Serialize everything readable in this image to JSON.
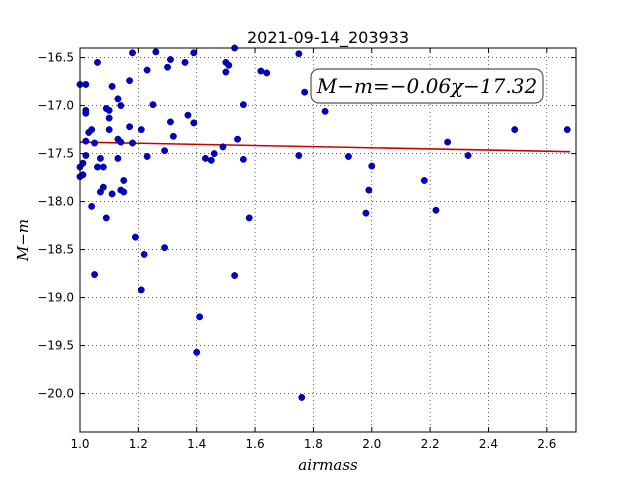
{
  "chart_data": {
    "type": "scatter",
    "title": "2021-09-14_203933",
    "xlabel": "airmass",
    "ylabel": "M−m",
    "xlim": [
      1.0,
      2.7
    ],
    "ylim": [
      -20.4,
      -16.4
    ],
    "y_inverted": true,
    "grid": true,
    "xticks": [
      1.0,
      1.2,
      1.4,
      1.6,
      1.8,
      2.0,
      2.2,
      2.4,
      2.6
    ],
    "xtick_labels": [
      "1.0",
      "1.2",
      "1.4",
      "1.6",
      "1.8",
      "2.0",
      "2.2",
      "2.4",
      "2.6"
    ],
    "yticks": [
      -16.5,
      -17.0,
      -17.5,
      -18.0,
      -18.5,
      -19.0,
      -19.5,
      -20.0
    ],
    "ytick_labels": [
      "−16.5",
      "−17.0",
      "−17.5",
      "−18.0",
      "−18.5",
      "−19.0",
      "−19.5",
      "−20.0"
    ],
    "annotation": "M−m=−0.06χ−17.32",
    "point_color": "#0000cc",
    "fit_color": "#cc0000",
    "fit_line": {
      "x": [
        1.0,
        2.68
      ],
      "y": [
        -17.38,
        -17.48
      ]
    },
    "points": [
      [
        1.0,
        -16.78
      ],
      [
        1.0,
        -17.64
      ],
      [
        1.0,
        -17.74
      ],
      [
        1.01,
        -17.6
      ],
      [
        1.01,
        -17.72
      ],
      [
        1.02,
        -16.78
      ],
      [
        1.02,
        -17.05
      ],
      [
        1.02,
        -17.08
      ],
      [
        1.02,
        -17.37
      ],
      [
        1.02,
        -17.52
      ],
      [
        1.03,
        -17.28
      ],
      [
        1.04,
        -17.25
      ],
      [
        1.04,
        -18.05
      ],
      [
        1.05,
        -18.76
      ],
      [
        1.05,
        -17.39
      ],
      [
        1.06,
        -17.64
      ],
      [
        1.06,
        -16.55
      ],
      [
        1.07,
        -17.9
      ],
      [
        1.07,
        -17.55
      ],
      [
        1.08,
        -17.64
      ],
      [
        1.08,
        -17.85
      ],
      [
        1.09,
        -18.17
      ],
      [
        1.09,
        -17.03
      ],
      [
        1.1,
        -17.05
      ],
      [
        1.1,
        -17.13
      ],
      [
        1.1,
        -17.25
      ],
      [
        1.11,
        -16.8
      ],
      [
        1.11,
        -17.92
      ],
      [
        1.13,
        -17.35
      ],
      [
        1.13,
        -17.55
      ],
      [
        1.13,
        -16.93
      ],
      [
        1.14,
        -17.0
      ],
      [
        1.14,
        -17.38
      ],
      [
        1.14,
        -17.88
      ],
      [
        1.15,
        -17.78
      ],
      [
        1.15,
        -17.9
      ],
      [
        1.17,
        -16.74
      ],
      [
        1.17,
        -17.22
      ],
      [
        1.18,
        -17.39
      ],
      [
        1.18,
        -16.45
      ],
      [
        1.19,
        -18.37
      ],
      [
        1.21,
        -17.25
      ],
      [
        1.21,
        -18.92
      ],
      [
        1.22,
        -18.55
      ],
      [
        1.23,
        -17.53
      ],
      [
        1.23,
        -16.63
      ],
      [
        1.25,
        -16.99
      ],
      [
        1.26,
        -16.44
      ],
      [
        1.29,
        -17.47
      ],
      [
        1.29,
        -18.48
      ],
      [
        1.3,
        -16.6
      ],
      [
        1.31,
        -16.52
      ],
      [
        1.31,
        -17.17
      ],
      [
        1.32,
        -17.32
      ],
      [
        1.36,
        -16.55
      ],
      [
        1.37,
        -17.1
      ],
      [
        1.39,
        -16.45
      ],
      [
        1.39,
        -17.18
      ],
      [
        1.4,
        -19.57
      ],
      [
        1.41,
        -19.2
      ],
      [
        1.43,
        -17.55
      ],
      [
        1.45,
        -17.57
      ],
      [
        1.46,
        -17.5
      ],
      [
        1.49,
        -17.43
      ],
      [
        1.5,
        -16.65
      ],
      [
        1.5,
        -16.55
      ],
      [
        1.51,
        -16.58
      ],
      [
        1.53,
        -16.4
      ],
      [
        1.53,
        -18.77
      ],
      [
        1.54,
        -17.35
      ],
      [
        1.56,
        -17.56
      ],
      [
        1.56,
        -16.99
      ],
      [
        1.58,
        -18.17
      ],
      [
        1.62,
        -16.64
      ],
      [
        1.64,
        -16.66
      ],
      [
        1.75,
        -16.46
      ],
      [
        1.75,
        -17.52
      ],
      [
        1.76,
        -20.04
      ],
      [
        1.77,
        -16.86
      ],
      [
        1.84,
        -17.06
      ],
      [
        1.92,
        -17.53
      ],
      [
        1.98,
        -18.12
      ],
      [
        1.99,
        -17.88
      ],
      [
        2.0,
        -17.63
      ],
      [
        2.18,
        -17.78
      ],
      [
        2.22,
        -18.09
      ],
      [
        2.26,
        -17.38
      ],
      [
        2.33,
        -17.52
      ],
      [
        2.49,
        -17.25
      ],
      [
        2.67,
        -17.25
      ]
    ]
  }
}
